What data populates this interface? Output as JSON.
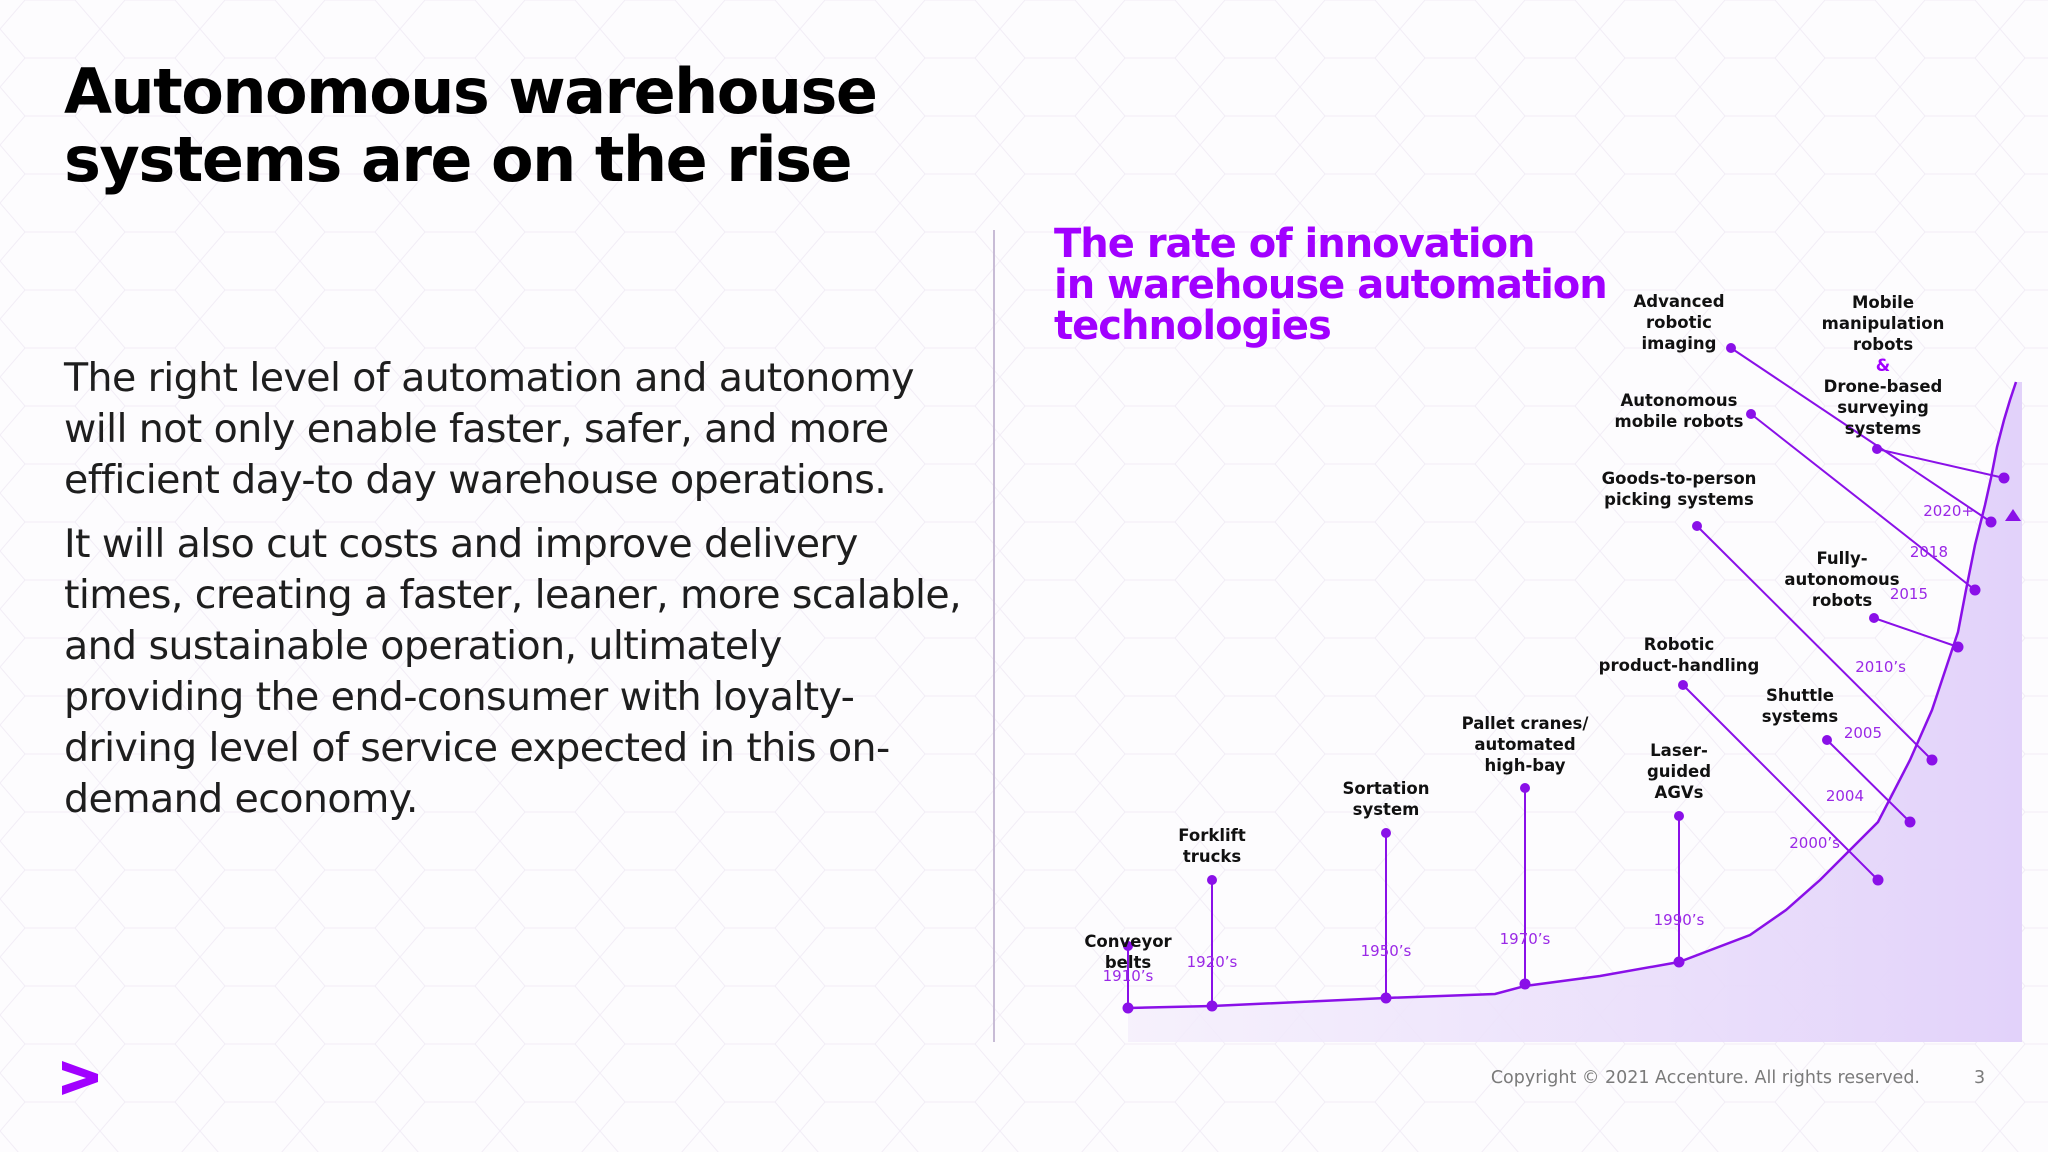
{
  "slide": {
    "title_lines": [
      "Autonomous warehouse",
      "systems are on the rise"
    ],
    "paragraph1_lines": [
      "The right level of automation and autonomy",
      "will not only enable faster, safer, and more",
      "efficient day-to day warehouse operations."
    ],
    "paragraph2_lines": [
      "It will also cut costs and improve delivery",
      "times, creating a faster, leaner, more scalable,",
      "and sustainable operation, ultimately",
      "providing the end-consumer with loyalty-",
      "driving level of service expected in this on-",
      "demand economy."
    ],
    "footer": "Copyright © 2021 Accenture. All rights reserved.",
    "page_number": "3",
    "logo": "accenture-chevron-icon"
  },
  "colors": {
    "accent": "#a100ff",
    "accent_line": "#8a10e8",
    "marker": "#8a10e8",
    "year_label": "#9a28e6",
    "area_fill": "#e9dcfb"
  },
  "chart_data": {
    "type": "line",
    "title_lines": [
      "The rate of innovation",
      "in warehouse automation",
      "technologies"
    ],
    "curve": "exponential rise",
    "milestones": [
      {
        "year": "1910’s",
        "label": [
          "Conveyor",
          "belts"
        ]
      },
      {
        "year": "1920’s",
        "label": [
          "Forklift",
          "trucks"
        ]
      },
      {
        "year": "1950’s",
        "label": [
          "Sortation",
          "system"
        ]
      },
      {
        "year": "1970’s",
        "label": [
          "Pallet cranes/",
          "automated",
          "high-bay"
        ]
      },
      {
        "year": "1990’s",
        "label": [
          "Laser-",
          "guided",
          "AGVs"
        ]
      },
      {
        "year": "2000’s",
        "label": [
          "Robotic",
          "product-handling"
        ]
      },
      {
        "year": "2004",
        "label": [
          "Shuttle",
          "systems"
        ]
      },
      {
        "year": "2005",
        "label": [
          "Goods-to-person",
          "picking systems"
        ]
      },
      {
        "year": "2010’s",
        "label": [
          "Fully-",
          "autonomous",
          "robots"
        ]
      },
      {
        "year": "2015",
        "label": [
          "Autonomous",
          "mobile robots"
        ]
      },
      {
        "year": "2018",
        "label": [
          "Advanced",
          "robotic",
          "imaging"
        ]
      },
      {
        "year": "2020+",
        "label": [
          "Mobile",
          "manipulation",
          "robots",
          "&",
          "Drone-based",
          "surveying",
          "systems"
        ]
      }
    ]
  }
}
